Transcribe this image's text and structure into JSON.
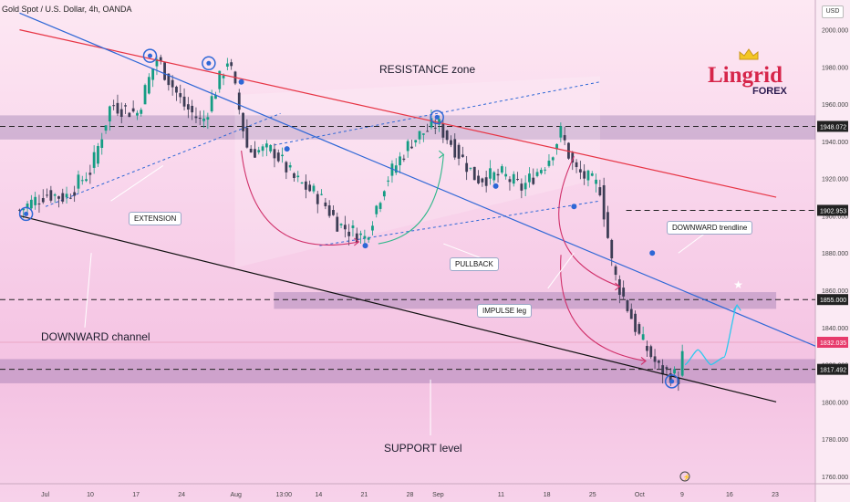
{
  "header": {
    "title": "Gold Spot / U.S. Dollar, 4h, OANDA",
    "currency": "USD"
  },
  "logo": {
    "main": "Lingrid",
    "sub": "FOREX"
  },
  "annotations": {
    "resistance_zone": "RESISTANCE zone",
    "support_level": "SUPPORT level",
    "downward_channel": "DOWNWARD channel",
    "extension": "EXTENSION",
    "pullback": "PULLBACK",
    "impulse_leg": "IMPULSE leg",
    "downward_trendline": "DOWNWARD trendline"
  },
  "colors": {
    "up": "#159d84",
    "down": "#3d3d55",
    "resistance_line": "#e73545",
    "trendline": "#2e67d6",
    "channel_line": "#111111",
    "zone": "#6a4f94",
    "arrow": "#d0306a",
    "pullback_arrow": "#2fb88a",
    "projection": "#2ec8ee",
    "label_bg": "#222222"
  },
  "chart_data": {
    "type": "candlestick",
    "title": "Gold Spot / U.S. Dollar, 4h, OANDA",
    "y_range": [
      1756,
      2016
    ],
    "y_ticks": [
      1760,
      1780,
      1800,
      1820,
      1840,
      1860,
      1880,
      1900,
      1920,
      1940,
      1960,
      1980,
      2000
    ],
    "x_ticks": [
      "Jul",
      "10",
      "17",
      "24",
      "Aug",
      "13:00",
      "14",
      "21",
      "28",
      "Sep",
      "11",
      "18",
      "25",
      "Oct",
      "9",
      "16",
      "23"
    ],
    "x_dates": [
      "2023-07-03",
      "2023-07-10",
      "2023-07-17",
      "2023-07-24",
      "2023-08-01",
      "2023-08-08",
      "2023-08-14",
      "2023-08-21",
      "2023-08-28",
      "2023-09-01",
      "2023-09-11",
      "2023-09-18",
      "2023-09-25",
      "2023-10-02",
      "2023-10-09",
      "2023-10-16",
      "2023-10-23"
    ],
    "price_labels": [
      {
        "value": 1948.072,
        "text": "1948.072"
      },
      {
        "value": 1902.953,
        "text": "1902.953"
      },
      {
        "value": 1855.0,
        "text": "1855.000"
      },
      {
        "value": 1832.035,
        "text": "1832.035"
      },
      {
        "value": 1817.492,
        "text": "1817.492"
      }
    ],
    "zones": [
      {
        "name": "resistance",
        "from": 1941,
        "to": 1954
      },
      {
        "name": "mid",
        "from": 1850,
        "to": 1859
      },
      {
        "name": "support",
        "from": 1810,
        "to": 1823
      }
    ],
    "ohlc_points": [
      {
        "date": "2023-06-29",
        "close": 1903
      },
      {
        "date": "2023-07-03",
        "close": 1912
      },
      {
        "date": "2023-07-06",
        "close": 1910
      },
      {
        "date": "2023-07-10",
        "close": 1925
      },
      {
        "date": "2023-07-13",
        "close": 1960
      },
      {
        "date": "2023-07-17",
        "close": 1955
      },
      {
        "date": "2023-07-20",
        "close": 1985
      },
      {
        "date": "2023-07-24",
        "close": 1960
      },
      {
        "date": "2023-07-27",
        "close": 1950
      },
      {
        "date": "2023-07-31",
        "close": 1985
      },
      {
        "date": "2023-08-03",
        "close": 1935
      },
      {
        "date": "2023-08-07",
        "close": 1935
      },
      {
        "date": "2023-08-10",
        "close": 1920
      },
      {
        "date": "2023-08-14",
        "close": 1910
      },
      {
        "date": "2023-08-17",
        "close": 1895
      },
      {
        "date": "2023-08-21",
        "close": 1888
      },
      {
        "date": "2023-08-24",
        "close": 1918
      },
      {
        "date": "2023-08-28",
        "close": 1940
      },
      {
        "date": "2023-09-01",
        "close": 1950
      },
      {
        "date": "2023-09-04",
        "close": 1935
      },
      {
        "date": "2023-09-07",
        "close": 1920
      },
      {
        "date": "2023-09-11",
        "close": 1922
      },
      {
        "date": "2023-09-14",
        "close": 1915
      },
      {
        "date": "2023-09-18",
        "close": 1930
      },
      {
        "date": "2023-09-20",
        "close": 1945
      },
      {
        "date": "2023-09-22",
        "close": 1925
      },
      {
        "date": "2023-09-26",
        "close": 1915
      },
      {
        "date": "2023-09-28",
        "close": 1870
      },
      {
        "date": "2023-10-02",
        "close": 1835
      },
      {
        "date": "2023-10-05",
        "close": 1818
      },
      {
        "date": "2023-10-08",
        "close": 1813
      },
      {
        "date": "2023-10-09",
        "close": 1832
      }
    ],
    "lines": [
      {
        "name": "resistance",
        "from": {
          "date": "2023-06-29",
          "value": 2000
        },
        "to": {
          "date": "2023-10-23",
          "value": 1910
        }
      },
      {
        "name": "downward-trendline",
        "from": {
          "date": "2023-06-29",
          "value": 2009
        },
        "to": {
          "date": "2023-10-29",
          "value": 1830
        }
      },
      {
        "name": "channel-support",
        "from": {
          "date": "2023-06-29",
          "value": 1900
        },
        "to": {
          "date": "2023-10-23",
          "value": 1800
        }
      }
    ],
    "projection": [
      {
        "date": "2023-10-09",
        "value": 1820
      },
      {
        "date": "2023-10-11",
        "value": 1828
      },
      {
        "date": "2023-10-13",
        "value": 1820
      },
      {
        "date": "2023-10-15",
        "value": 1824
      },
      {
        "date": "2023-10-17",
        "value": 1852
      }
    ],
    "grid": false,
    "legend": "none"
  }
}
